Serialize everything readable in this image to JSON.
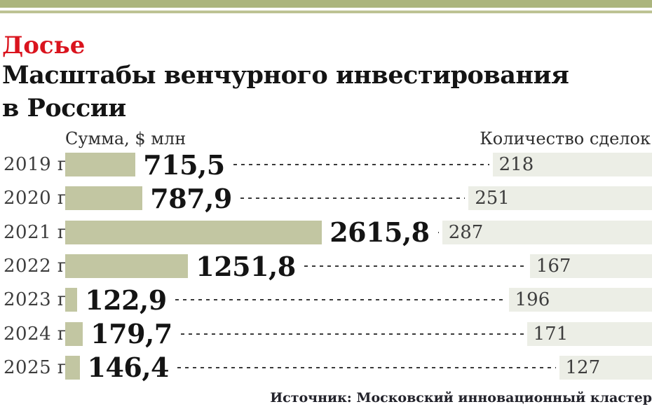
{
  "page": {
    "kicker": "Досье",
    "title_line1": "Масштабы венчурного инвестирования",
    "title_line2": "в России",
    "source": "Источник: Московский инновационный кластер"
  },
  "chart_data": {
    "type": "bar",
    "orientation": "horizontal",
    "kicker": "Досье",
    "title": "Масштабы венчурного инвестирования в России",
    "categories": [
      "2019 г.",
      "2020 г.",
      "2021 г.",
      "2022 г.",
      "2023 г.",
      "2024 г.",
      "2025 г."
    ],
    "series": [
      {
        "name": "Сумма, $ млн",
        "values": [
          715.5,
          787.9,
          2615.8,
          1251.8,
          122.9,
          179.7,
          146.4
        ],
        "value_labels": [
          "715,5",
          "787,9",
          "2615,8",
          "1251,8",
          "122,9",
          "179,7",
          "146,4"
        ]
      },
      {
        "name": "Количество сделок",
        "values": [
          218,
          251,
          287,
          167,
          196,
          171,
          127
        ]
      }
    ],
    "legend_position": "column-headers",
    "grid": false,
    "source": "Источник: Московский инновационный кластер"
  },
  "colors": {
    "accent_band": "#abb57d",
    "accent_stripe": "#bdc394",
    "sum_bar": "#c2c6a2",
    "count_bar": "#eceee6",
    "kicker_red": "#da141e",
    "text": "#141414",
    "dash": "#3a3a3a"
  }
}
